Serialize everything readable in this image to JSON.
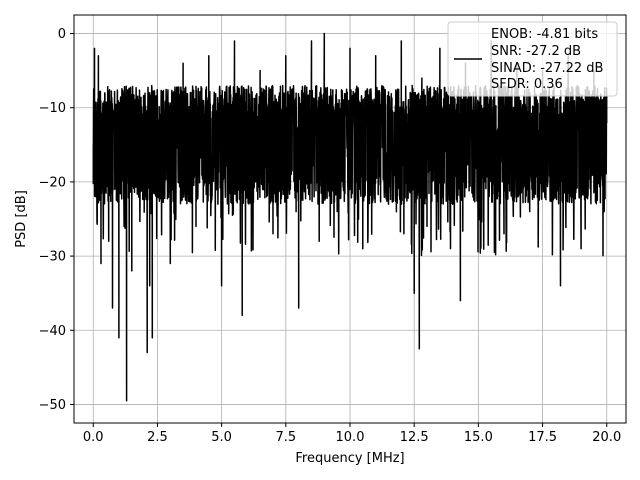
{
  "chart_data": {
    "type": "line",
    "xlabel": "Frequency [MHz]",
    "ylabel": "PSD [dB]",
    "xlim": [
      -0.75,
      20.75
    ],
    "ylim": [
      -52.5,
      2.5
    ],
    "x_ticks": [
      0.0,
      2.5,
      5.0,
      7.5,
      10.0,
      12.5,
      15.0,
      17.5,
      20.0
    ],
    "x_tick_labels": [
      "0.0",
      "2.5",
      "5.0",
      "7.5",
      "10.0",
      "12.5",
      "15.0",
      "17.5",
      "20.0"
    ],
    "y_ticks": [
      0,
      -10,
      -20,
      -30,
      -40,
      -50
    ],
    "y_tick_labels": [
      "0",
      "−10",
      "−20",
      "−30",
      "−40",
      "−50"
    ],
    "grid": true,
    "legend_position": "top-right",
    "legend": {
      "lines": [
        "ENOB: -4.81 bits",
        "SNR: -27.2 dB",
        "SINAD: -27.22 dB",
        "SFDR: 0.36"
      ]
    },
    "series": [
      {
        "color": "#000000",
        "x_range": [
          0.0,
          20.0
        ],
        "typical_level": [
          -7,
          -19
        ],
        "x": [
          0.0,
          0.05,
          0.1,
          0.2,
          0.3,
          0.45,
          0.6,
          0.75,
          0.9,
          1.0,
          1.2,
          1.3,
          1.35,
          1.5,
          1.8,
          2.1,
          2.2,
          2.3,
          2.5,
          3.0,
          3.5,
          4.0,
          4.5,
          5.0,
          5.5,
          5.8,
          6.0,
          6.5,
          7.0,
          7.5,
          7.9,
          8.0,
          8.5,
          8.8,
          9.0,
          9.5,
          10.0,
          10.5,
          11.0,
          11.5,
          12.0,
          12.1,
          12.5,
          12.7,
          12.8,
          13.0,
          13.5,
          14.0,
          14.3,
          14.5,
          15.0,
          15.5,
          16.0,
          16.5,
          17.0,
          17.5,
          18.2,
          18.5,
          19.0,
          19.5,
          19.9,
          20.0
        ],
        "y": [
          -15,
          -2,
          -22,
          -3,
          -31,
          -8,
          -28,
          -37,
          -12,
          -41,
          -26,
          -49.5,
          -13,
          -32,
          -12,
          -43,
          -34,
          -41,
          -9,
          -31,
          -4,
          -26,
          -3,
          -34,
          -1,
          -38,
          -14,
          -5,
          -27,
          -3,
          -24,
          -37,
          -1,
          -28,
          0,
          -24,
          -2,
          -29,
          -3,
          -23,
          -1,
          -27,
          -35,
          -42.5,
          -6,
          -26,
          -2,
          -23,
          -36,
          -4,
          -24,
          -1,
          -27,
          -4,
          -24,
          -5,
          -34,
          -3,
          -29,
          -5,
          -24,
          -12
        ]
      }
    ]
  }
}
